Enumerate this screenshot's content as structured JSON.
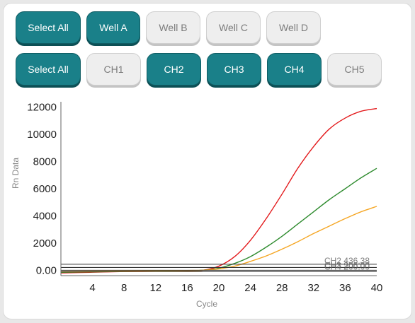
{
  "well_buttons": [
    {
      "label": "Select All",
      "active": true
    },
    {
      "label": "Well A",
      "active": true
    },
    {
      "label": "Well B",
      "active": false
    },
    {
      "label": "Well C",
      "active": false
    },
    {
      "label": "Well D",
      "active": false
    }
  ],
  "channel_buttons": [
    {
      "label": "Select All",
      "active": true
    },
    {
      "label": "CH1",
      "active": false
    },
    {
      "label": "CH2",
      "active": true
    },
    {
      "label": "CH3",
      "active": true
    },
    {
      "label": "CH4",
      "active": true
    },
    {
      "label": "CH5",
      "active": false
    }
  ],
  "colors": {
    "accent": "#1a8089",
    "red": "#e31a1c",
    "green": "#2e8b2e",
    "orange": "#f5a623",
    "threshold": "#333333"
  },
  "chart_data": {
    "type": "line",
    "xlabel": "Cycle",
    "ylabel": "Rn Data",
    "xlim": [
      0,
      40
    ],
    "ylim": [
      -400,
      12400
    ],
    "x_ticks": [
      "4",
      "8",
      "12",
      "16",
      "20",
      "24",
      "28",
      "32",
      "36",
      "40"
    ],
    "y_ticks": [
      "0.00",
      "2000",
      "4000",
      "6000",
      "8000",
      "10000",
      "12000"
    ],
    "series": [
      {
        "color": "#e31a1c",
        "x": [
          0,
          4,
          8,
          12,
          16,
          18,
          20,
          22,
          24,
          26,
          28,
          30,
          32,
          34,
          36,
          38,
          40
        ],
        "y": [
          -200,
          -150,
          -100,
          -80,
          -50,
          0,
          300,
          1000,
          2200,
          3800,
          5600,
          7500,
          9100,
          10400,
          11200,
          11700,
          11900
        ]
      },
      {
        "color": "#2e8b2e",
        "x": [
          0,
          4,
          8,
          12,
          16,
          18,
          20,
          22,
          24,
          26,
          28,
          30,
          32,
          34,
          36,
          38,
          40
        ],
        "y": [
          -150,
          -120,
          -90,
          -60,
          -30,
          0,
          150,
          500,
          1000,
          1700,
          2500,
          3400,
          4300,
          5200,
          6000,
          6800,
          7500
        ]
      },
      {
        "color": "#f5a623",
        "x": [
          0,
          4,
          8,
          12,
          16,
          18,
          20,
          22,
          24,
          26,
          28,
          30,
          32,
          34,
          36,
          38,
          40
        ],
        "y": [
          -100,
          -80,
          -60,
          -40,
          -20,
          0,
          100,
          300,
          650,
          1050,
          1550,
          2100,
          2700,
          3250,
          3800,
          4300,
          4700
        ]
      }
    ],
    "thresholds": [
      {
        "label": "CH2 436.38",
        "value": 436.38
      },
      {
        "label": "CH3 206.00",
        "value": 206.0
      },
      {
        "label": "CH4 200.00",
        "value": 200.0
      },
      {
        "label": "",
        "value": 0
      },
      {
        "label": "",
        "value": -100
      }
    ]
  }
}
